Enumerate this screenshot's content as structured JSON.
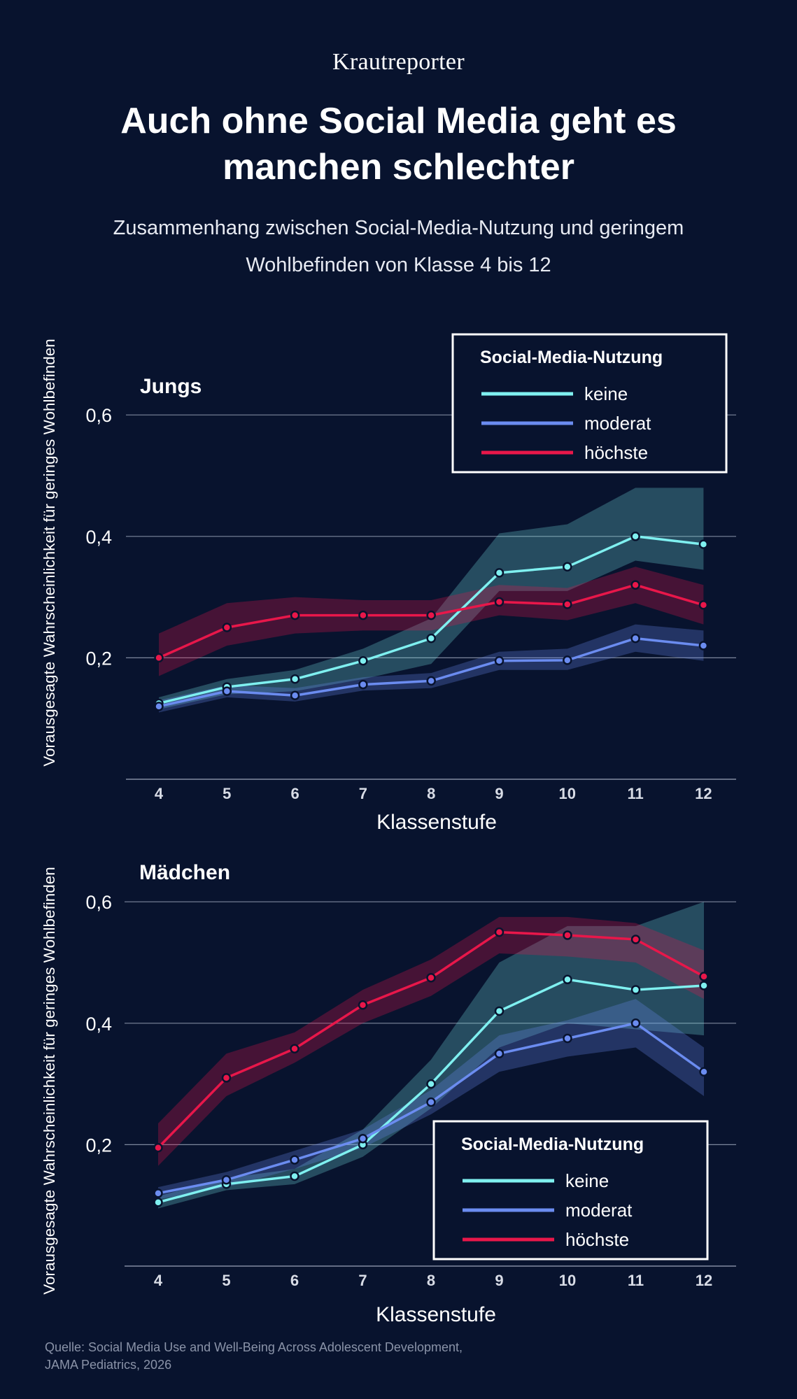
{
  "brand": "Krautreporter",
  "title": "Auch ohne Social Media geht es manchen schlechter",
  "subtitle": "Zusammenhang zwischen Social-Media-Nutzung und geringem Wohlbefinden von Klasse 4 bis 12",
  "source": "Quelle: Social Media Use and Well-Being Across Adolescent Development, JAMA Pediatrics, 2026",
  "colors": {
    "background": "#08132e",
    "keine": "#7ff0f0",
    "moderat": "#6b8cf0",
    "hoechste": "#e8174a"
  },
  "chart_data": [
    {
      "type": "line",
      "title": "Jungs",
      "xlabel": "Klassenstufe",
      "ylabel": "Vorausgesagte Wahrscheinlichkeit für geringes Wohlbefinden",
      "ylim": [
        0,
        0.6
      ],
      "yticks": [
        0.2,
        0.4,
        0.6
      ],
      "ytick_labels": [
        "0,2",
        "0,4",
        "0,6"
      ],
      "categories": [
        4,
        5,
        6,
        7,
        8,
        9,
        10,
        11,
        12
      ],
      "legend_title": "Social-Media-Nutzung",
      "legend_position": "top-right",
      "series": [
        {
          "name": "keine",
          "key": "keine",
          "values": [
            0.125,
            0.152,
            0.165,
            0.195,
            0.232,
            0.34,
            0.35,
            0.4,
            0.387
          ],
          "lower": [
            0.115,
            0.14,
            0.145,
            0.165,
            0.19,
            0.31,
            0.31,
            0.36,
            0.345
          ],
          "upper": [
            0.135,
            0.165,
            0.18,
            0.215,
            0.265,
            0.405,
            0.42,
            0.48,
            0.48
          ]
        },
        {
          "name": "moderat",
          "key": "moderat",
          "values": [
            0.12,
            0.145,
            0.138,
            0.156,
            0.162,
            0.195,
            0.196,
            0.232,
            0.22
          ],
          "lower": [
            0.11,
            0.135,
            0.128,
            0.146,
            0.15,
            0.18,
            0.18,
            0.21,
            0.195
          ],
          "upper": [
            0.13,
            0.155,
            0.15,
            0.168,
            0.175,
            0.21,
            0.215,
            0.255,
            0.245
          ]
        },
        {
          "name": "höchste",
          "key": "hoechste",
          "values": [
            0.2,
            0.25,
            0.27,
            0.27,
            0.27,
            0.292,
            0.288,
            0.32,
            0.287
          ],
          "lower": [
            0.17,
            0.22,
            0.24,
            0.245,
            0.245,
            0.27,
            0.262,
            0.29,
            0.255
          ],
          "upper": [
            0.24,
            0.29,
            0.3,
            0.295,
            0.295,
            0.32,
            0.315,
            0.35,
            0.32
          ]
        }
      ]
    },
    {
      "type": "line",
      "title": "Mädchen",
      "xlabel": "Klassenstufe",
      "ylabel": "Vorausgesagte Wahrscheinlichkeit für geringes Wohlbefinden",
      "ylim": [
        0,
        0.6
      ],
      "yticks": [
        0.2,
        0.4,
        0.6
      ],
      "ytick_labels": [
        "0,2",
        "0,4",
        "0,6"
      ],
      "categories": [
        4,
        5,
        6,
        7,
        8,
        9,
        10,
        11,
        12
      ],
      "legend_title": "Social-Media-Nutzung",
      "legend_position": "bottom-right",
      "series": [
        {
          "name": "keine",
          "key": "keine",
          "values": [
            0.105,
            0.135,
            0.148,
            0.2,
            0.3,
            0.42,
            0.472,
            0.455,
            0.462
          ],
          "lower": [
            0.095,
            0.125,
            0.135,
            0.18,
            0.26,
            0.36,
            0.4,
            0.39,
            0.38
          ],
          "upper": [
            0.115,
            0.145,
            0.16,
            0.225,
            0.34,
            0.5,
            0.56,
            0.56,
            0.6
          ]
        },
        {
          "name": "moderat",
          "key": "moderat",
          "values": [
            0.12,
            0.142,
            0.175,
            0.21,
            0.27,
            0.35,
            0.375,
            0.4,
            0.32
          ],
          "lower": [
            0.11,
            0.13,
            0.16,
            0.195,
            0.25,
            0.32,
            0.345,
            0.36,
            0.28
          ],
          "upper": [
            0.13,
            0.155,
            0.19,
            0.225,
            0.29,
            0.38,
            0.405,
            0.44,
            0.36
          ]
        },
        {
          "name": "höchste",
          "key": "hoechste",
          "values": [
            0.195,
            0.31,
            0.358,
            0.43,
            0.475,
            0.55,
            0.545,
            0.538,
            0.477
          ],
          "lower": [
            0.165,
            0.28,
            0.335,
            0.4,
            0.445,
            0.515,
            0.51,
            0.5,
            0.44
          ],
          "upper": [
            0.235,
            0.35,
            0.385,
            0.455,
            0.505,
            0.575,
            0.575,
            0.565,
            0.52
          ]
        }
      ]
    }
  ]
}
